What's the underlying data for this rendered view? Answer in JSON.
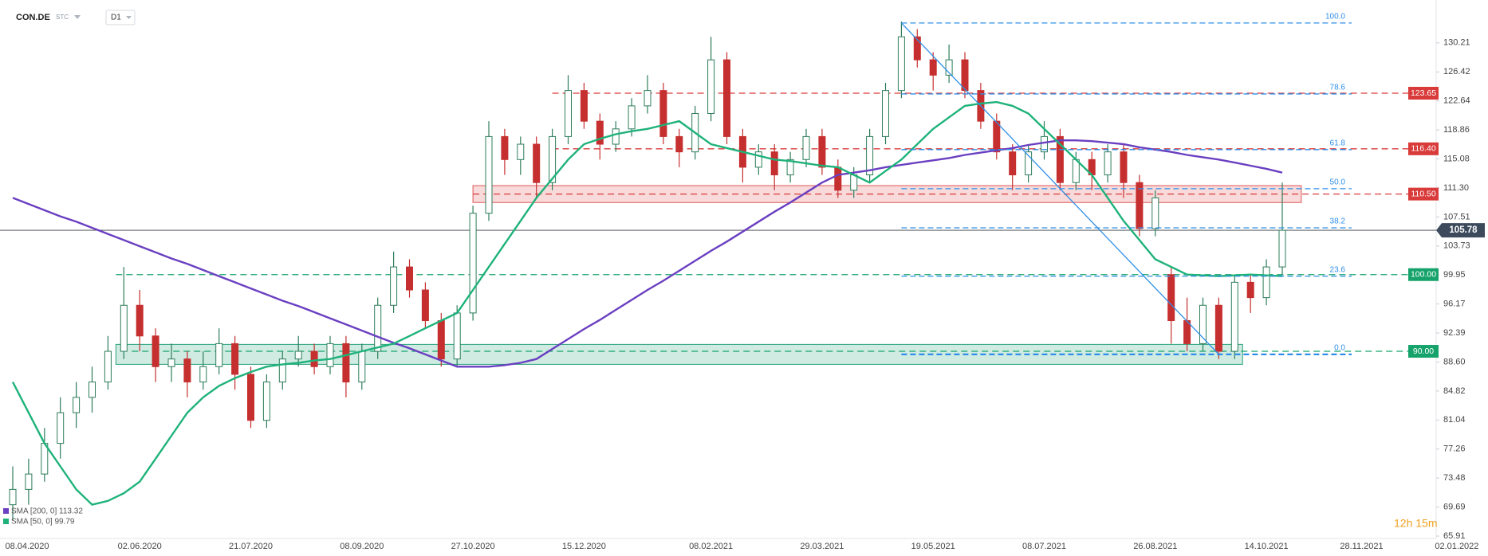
{
  "header": {
    "symbol": "CON.DE",
    "source": "STC",
    "interval": "D1"
  },
  "timer": "12h 15m",
  "chart_data": {
    "type": "candlestick",
    "categories": [
      "08.04.2020",
      null,
      null,
      null,
      null,
      null,
      null,
      null,
      "02.06.2020",
      null,
      null,
      null,
      null,
      null,
      null,
      "21.07.2020",
      null,
      null,
      null,
      null,
      null,
      null,
      "08.09.2020",
      null,
      null,
      null,
      null,
      null,
      null,
      "27.10.2020",
      null,
      null,
      null,
      null,
      null,
      null,
      "15.12.2020",
      null,
      null,
      null,
      null,
      null,
      null,
      null,
      "08.02.2021",
      null,
      null,
      null,
      null,
      null,
      null,
      "29.03.2021",
      null,
      null,
      null,
      null,
      null,
      null,
      "19.05.2021",
      null,
      null,
      null,
      null,
      null,
      null,
      "08.07.2021",
      null,
      null,
      null,
      null,
      null,
      null,
      "26.08.2021",
      null,
      null,
      null,
      null,
      null,
      null,
      "14.10.2021",
      null,
      null,
      null,
      null,
      null,
      "28.11.2021",
      null,
      null,
      null,
      null,
      null,
      "02.01.2022"
    ],
    "ohlc": [
      [
        70,
        75,
        68,
        72
      ],
      [
        72,
        76,
        70,
        74
      ],
      [
        74,
        80,
        73,
        78
      ],
      [
        78,
        84,
        76,
        82
      ],
      [
        82,
        86,
        80,
        84
      ],
      [
        84,
        88,
        82,
        86
      ],
      [
        86,
        92,
        85,
        90
      ],
      [
        90,
        101,
        89,
        96
      ],
      [
        96,
        98,
        90,
        92
      ],
      [
        92,
        93,
        86,
        88
      ],
      [
        88,
        91,
        86,
        89
      ],
      [
        89,
        90,
        84,
        86
      ],
      [
        86,
        90,
        85,
        88
      ],
      [
        88,
        93,
        87,
        91
      ],
      [
        91,
        92,
        85,
        87
      ],
      [
        87,
        88,
        80,
        81
      ],
      [
        81,
        87,
        80,
        86
      ],
      [
        86,
        90,
        85,
        89
      ],
      [
        89,
        92,
        88,
        90
      ],
      [
        90,
        91,
        87,
        88
      ],
      [
        88,
        92,
        87,
        91
      ],
      [
        91,
        92,
        84,
        86
      ],
      [
        86,
        91,
        85,
        90
      ],
      [
        90,
        97,
        89,
        96
      ],
      [
        96,
        103,
        95,
        101
      ],
      [
        101,
        102,
        97,
        98
      ],
      [
        98,
        99,
        93,
        94
      ],
      [
        94,
        95,
        88,
        89
      ],
      [
        89,
        96,
        88,
        95
      ],
      [
        95,
        109,
        94,
        108
      ],
      [
        108,
        120,
        107,
        118
      ],
      [
        118,
        119,
        113,
        115
      ],
      [
        115,
        118,
        113,
        117
      ],
      [
        117,
        118,
        110,
        112
      ],
      [
        112,
        119,
        111,
        118
      ],
      [
        118,
        126,
        117,
        124
      ],
      [
        124,
        125,
        119,
        120
      ],
      [
        120,
        121,
        115,
        117
      ],
      [
        117,
        120,
        116,
        119
      ],
      [
        119,
        123,
        118,
        122
      ],
      [
        122,
        126,
        121,
        124
      ],
      [
        124,
        125,
        117,
        118
      ],
      [
        118,
        119,
        114,
        116
      ],
      [
        116,
        122,
        115,
        121
      ],
      [
        121,
        131,
        120,
        128
      ],
      [
        128,
        129,
        117,
        118
      ],
      [
        118,
        119,
        112,
        114
      ],
      [
        114,
        117,
        113,
        116
      ],
      [
        116,
        117,
        111,
        113
      ],
      [
        113,
        116,
        112,
        115
      ],
      [
        115,
        119,
        114,
        118
      ],
      [
        118,
        119,
        113,
        114
      ],
      [
        114,
        115,
        110,
        111
      ],
      [
        111,
        114,
        110,
        113
      ],
      [
        113,
        119,
        112,
        118
      ],
      [
        118,
        125,
        117,
        124
      ],
      [
        124,
        133,
        123,
        131
      ],
      [
        131,
        132,
        127,
        128
      ],
      [
        128,
        129,
        124,
        126
      ],
      [
        126,
        130,
        125,
        128
      ],
      [
        128,
        129,
        123,
        124
      ],
      [
        124,
        125,
        119,
        120
      ],
      [
        120,
        121,
        115,
        116
      ],
      [
        116,
        117,
        111,
        113
      ],
      [
        113,
        117,
        112,
        116
      ],
      [
        116,
        120,
        115,
        118
      ],
      [
        118,
        119,
        111,
        112
      ],
      [
        112,
        116,
        111,
        115
      ],
      [
        115,
        116,
        111,
        113
      ],
      [
        113,
        117,
        112,
        116
      ],
      [
        116,
        117,
        110,
        112
      ],
      [
        112,
        113,
        105,
        106
      ],
      [
        106,
        111,
        105,
        110
      ],
      [
        100,
        101,
        91,
        94
      ],
      [
        94,
        97,
        90,
        91
      ],
      [
        91,
        97,
        90,
        96
      ],
      [
        96,
        97,
        89,
        90
      ],
      [
        90,
        100,
        89,
        99
      ],
      [
        99,
        100,
        95,
        97
      ],
      [
        97,
        102,
        96,
        101
      ],
      [
        101,
        112,
        100,
        105.78
      ],
      null,
      null,
      null,
      null,
      null,
      null,
      null,
      null,
      null,
      null,
      null
    ],
    "up_color": "#2e7d5b",
    "down_color": "#c62f2f",
    "ylim": [
      65.6,
      135.8
    ],
    "yticks": [
      130.21,
      126.42,
      122.64,
      118.86,
      115.08,
      {
        "value": 111.3,
        "label": "111.30"
      },
      107.51,
      103.73,
      99.95,
      96.17,
      92.39,
      {
        "value": 88.6,
        "label": "88.60"
      },
      84.82,
      81.04,
      77.26,
      73.48,
      69.69,
      65.91
    ],
    "grid": false,
    "series": [
      {
        "name": "SMA [200, 0] 113.32",
        "color": "#6a3fc1",
        "values": [
          110,
          109.2,
          108.4,
          107.6,
          106.9,
          106.1,
          105.3,
          104.5,
          103.7,
          102.9,
          102.1,
          101.4,
          100.6,
          99.8,
          99,
          98.2,
          97.4,
          96.6,
          95.9,
          95.1,
          94.3,
          93.5,
          92.7,
          91.9,
          91.1,
          90.4,
          89.6,
          88.8,
          88,
          88,
          88,
          88.2,
          88.5,
          89,
          90.3,
          91.6,
          92.9,
          94.1,
          95.4,
          96.7,
          98,
          99.2,
          100.5,
          101.8,
          103.1,
          104.3,
          105.6,
          106.9,
          108.2,
          109.4,
          110.7,
          112,
          113,
          113.3,
          113.6,
          114,
          114.3,
          114.6,
          114.9,
          115.2,
          115.6,
          115.9,
          116.2,
          116.5,
          116.9,
          117.2,
          117.5,
          117.5,
          117.4,
          117.2,
          117,
          116.6,
          116.3,
          116,
          115.6,
          115.3,
          115,
          114.6,
          114.2,
          113.8,
          113.3,
          null,
          null,
          null,
          null,
          null,
          null,
          null,
          null,
          null,
          null,
          null
        ]
      },
      {
        "name": "SMA [50, 0] 99.79",
        "color": "#1eb27a",
        "values": [
          86,
          82,
          78,
          75,
          72,
          70,
          70.5,
          71.5,
          73,
          76,
          79,
          82,
          84,
          85.5,
          86.5,
          87.3,
          88,
          88.3,
          88.5,
          88.8,
          89,
          89.5,
          90,
          90.5,
          91,
          92,
          93,
          94,
          95,
          98,
          101,
          104,
          107,
          110,
          112.5,
          115,
          117,
          117.7,
          118.3,
          118.7,
          119,
          119.5,
          120,
          118.5,
          117,
          116.5,
          116,
          115.5,
          115,
          114.8,
          114.5,
          114.2,
          114,
          113,
          112,
          113.5,
          115,
          117,
          119,
          120.5,
          122,
          122.3,
          122.5,
          122,
          121,
          119,
          117,
          115,
          113,
          110,
          107,
          104.5,
          102,
          101,
          100,
          99.9,
          99.8,
          99.9,
          100,
          99.9,
          99.8,
          null,
          null,
          null,
          null,
          null,
          null,
          null,
          null,
          null,
          null,
          null
        ]
      }
    ],
    "levels": [
      {
        "price": 123.65,
        "color": "#d93a3a"
      },
      {
        "price": {
          "value": 116.4,
          "label": "116.40"
        },
        "color": "#d93a3a"
      },
      {
        "price": {
          "value": 110.5,
          "label": "110.50"
        },
        "color": "#d93a3a"
      },
      {
        "price": {
          "value": 100,
          "label": "100.00"
        },
        "color": "#16a36b"
      },
      {
        "price": {
          "value": 90,
          "label": "90.00"
        },
        "color": "#16a36b"
      }
    ],
    "zones": [
      {
        "ylim": [
          109.4,
          111.6
        ],
        "color": "#e05555"
      },
      {
        "ylim": [
          88.3,
          90.9
        ],
        "color": "#26a27b"
      }
    ],
    "fib": {
      "high": 132.8,
      "low": 89.6,
      "color": "#2f8fe8",
      "levels": [
        {
          "value": 100,
          "label": "100.0"
        },
        78.6,
        61.8,
        {
          "value": 50,
          "label": "50.0"
        },
        38.2,
        23.6,
        {
          "value": 0,
          "label": "0.0"
        }
      ]
    },
    "last_price": 105.78
  }
}
